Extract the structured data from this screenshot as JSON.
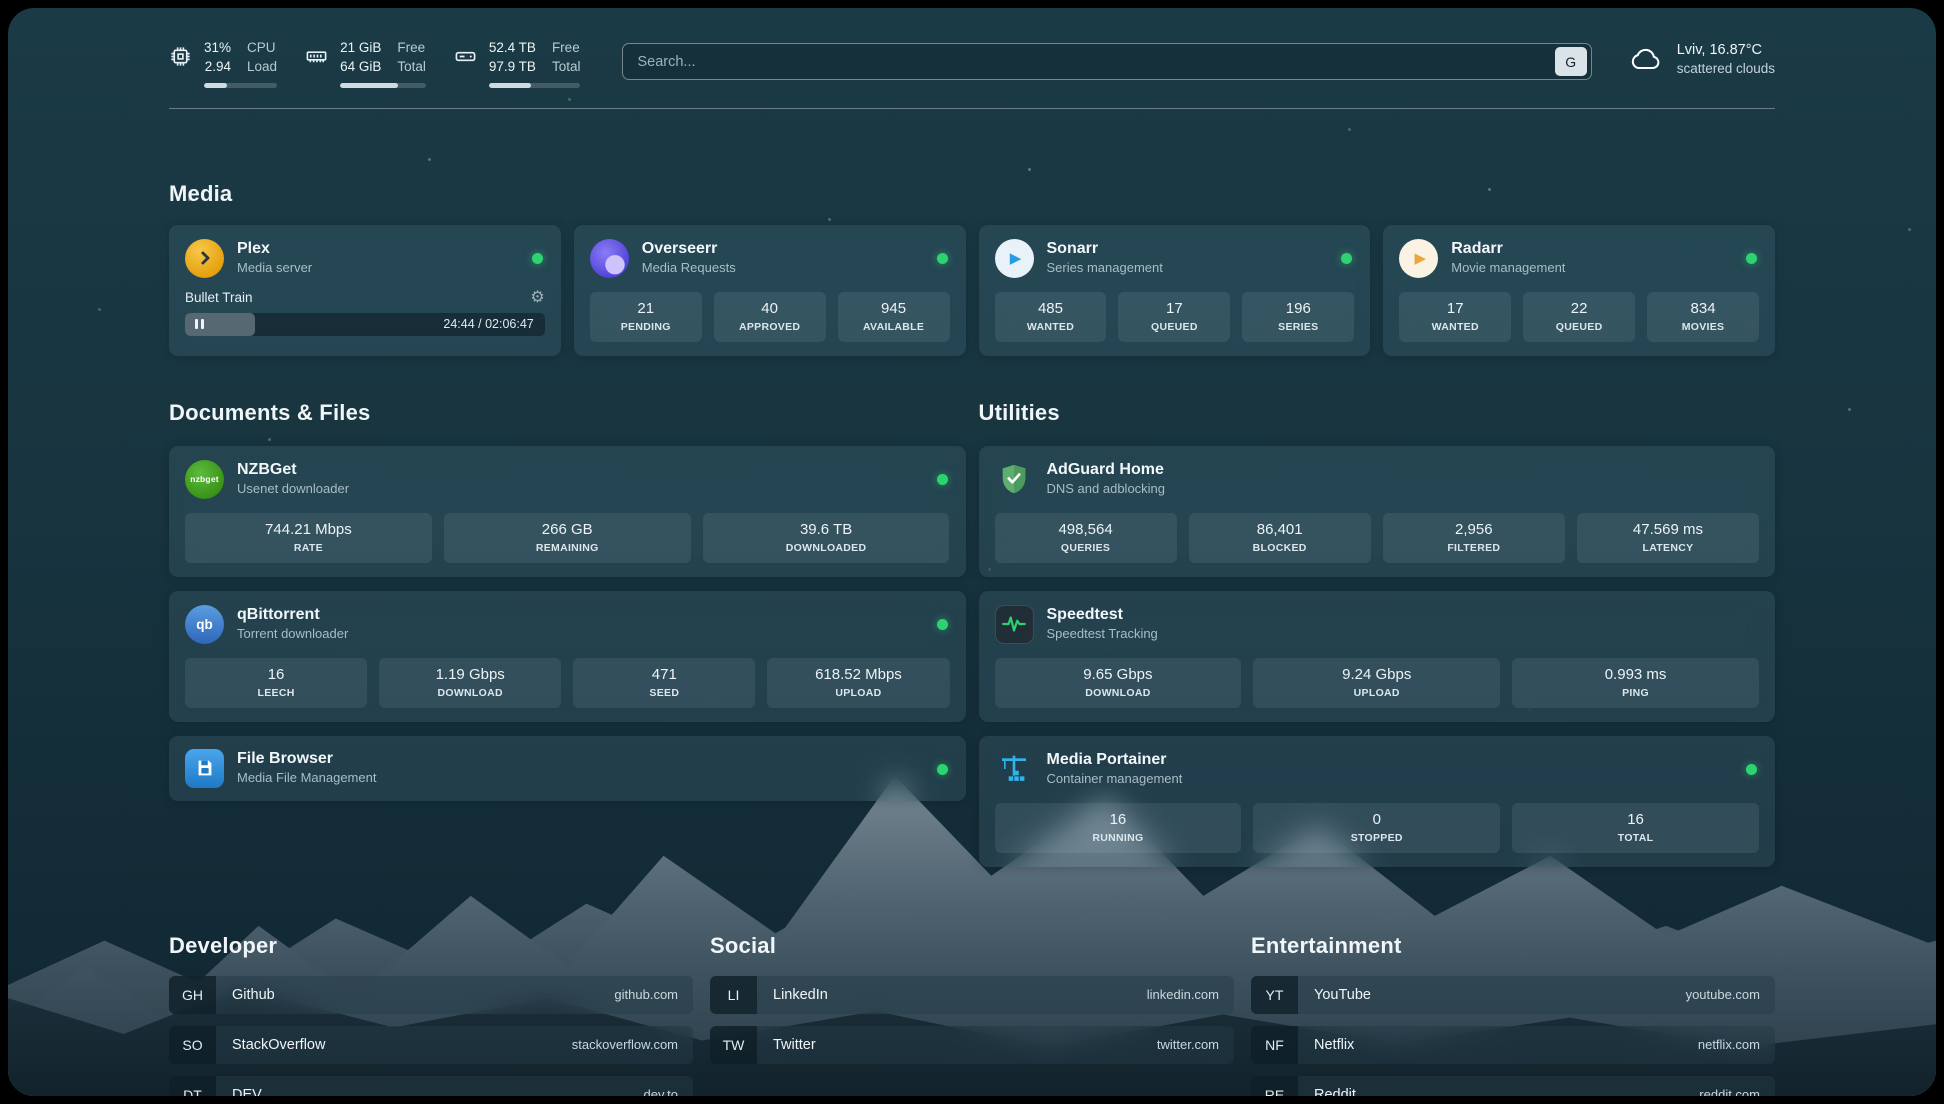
{
  "topbar": {
    "resources": [
      {
        "name": "cpu",
        "value_top": "31%",
        "value_bottom": "2.94",
        "label_top": "CPU",
        "label_bottom": "Load",
        "bar_percent": 31
      },
      {
        "name": "memory",
        "value_top": "21 GiB",
        "value_bottom": "64 GiB",
        "label_top": "Free",
        "label_bottom": "Total",
        "bar_percent": 67
      },
      {
        "name": "disk",
        "value_top": "52.4 TB",
        "value_bottom": "97.9 TB",
        "label_top": "Free",
        "label_bottom": "Total",
        "bar_percent": 46
      }
    ],
    "search": {
      "placeholder": "Search...",
      "provider_label": "G"
    },
    "weather": {
      "location": "Lviv, 16.87°C",
      "condition": "scattered clouds",
      "icon": "cloud-icon"
    }
  },
  "sections": {
    "media": "Media",
    "documents": "Documents & Files",
    "utilities": "Utilities"
  },
  "services": {
    "plex": {
      "title": "Plex",
      "subtitle": "Media server",
      "status": "online",
      "now_playing": "Bullet Train",
      "time_display": "24:44 / 02:06:47",
      "progress_percent": 19.5
    },
    "overseerr": {
      "title": "Overseerr",
      "subtitle": "Media Requests",
      "status": "online",
      "stats": [
        {
          "value": "21",
          "label": "PENDING"
        },
        {
          "value": "40",
          "label": "APPROVED"
        },
        {
          "value": "945",
          "label": "AVAILABLE"
        }
      ]
    },
    "sonarr": {
      "title": "Sonarr",
      "subtitle": "Series management",
      "status": "online",
      "stats": [
        {
          "value": "485",
          "label": "WANTED"
        },
        {
          "value": "17",
          "label": "QUEUED"
        },
        {
          "value": "196",
          "label": "SERIES"
        }
      ]
    },
    "radarr": {
      "title": "Radarr",
      "subtitle": "Movie management",
      "status": "online",
      "stats": [
        {
          "value": "17",
          "label": "WANTED"
        },
        {
          "value": "22",
          "label": "QUEUED"
        },
        {
          "value": "834",
          "label": "MOVIES"
        }
      ]
    },
    "nzbget": {
      "title": "NZBGet",
      "subtitle": "Usenet downloader",
      "status": "online",
      "icon_text": "nzbget",
      "stats": [
        {
          "value": "744.21 Mbps",
          "label": "RATE"
        },
        {
          "value": "266 GB",
          "label": "REMAINING"
        },
        {
          "value": "39.6 TB",
          "label": "DOWNLOADED"
        }
      ]
    },
    "qbittorrent": {
      "title": "qBittorrent",
      "subtitle": "Torrent downloader",
      "status": "online",
      "icon_text": "qb",
      "stats": [
        {
          "value": "16",
          "label": "LEECH"
        },
        {
          "value": "1.19 Gbps",
          "label": "DOWNLOAD"
        },
        {
          "value": "471",
          "label": "SEED"
        },
        {
          "value": "618.52 Mbps",
          "label": "UPLOAD"
        }
      ]
    },
    "filebrowser": {
      "title": "File Browser",
      "subtitle": "Media File Management",
      "status": "online"
    },
    "adguard": {
      "title": "AdGuard Home",
      "subtitle": "DNS and adblocking",
      "stats": [
        {
          "value": "498,564",
          "label": "QUERIES"
        },
        {
          "value": "86,401",
          "label": "BLOCKED"
        },
        {
          "value": "2,956",
          "label": "FILTERED"
        },
        {
          "value": "47.569 ms",
          "label": "LATENCY"
        }
      ]
    },
    "speedtest": {
      "title": "Speedtest",
      "subtitle": "Speedtest Tracking",
      "stats": [
        {
          "value": "9.65 Gbps",
          "label": "DOWNLOAD"
        },
        {
          "value": "9.24 Gbps",
          "label": "UPLOAD"
        },
        {
          "value": "0.993 ms",
          "label": "PING"
        }
      ]
    },
    "portainer": {
      "title": "Media Portainer",
      "subtitle": "Container management",
      "status": "online",
      "stats": [
        {
          "value": "16",
          "label": "RUNNING"
        },
        {
          "value": "0",
          "label": "STOPPED"
        },
        {
          "value": "16",
          "label": "TOTAL"
        }
      ]
    }
  },
  "bookmarks": [
    {
      "heading": "Developer",
      "items": [
        {
          "abbr": "GH",
          "name": "Github",
          "url": "github.com"
        },
        {
          "abbr": "SO",
          "name": "StackOverflow",
          "url": "stackoverflow.com"
        },
        {
          "abbr": "DT",
          "name": "DEV",
          "url": "dev.to"
        }
      ]
    },
    {
      "heading": "Social",
      "items": [
        {
          "abbr": "LI",
          "name": "LinkedIn",
          "url": "linkedin.com"
        },
        {
          "abbr": "TW",
          "name": "Twitter",
          "url": "twitter.com"
        }
      ]
    },
    {
      "heading": "Entertainment",
      "items": [
        {
          "abbr": "YT",
          "name": "YouTube",
          "url": "youtube.com"
        },
        {
          "abbr": "NF",
          "name": "Netflix",
          "url": "netflix.com"
        },
        {
          "abbr": "RE",
          "name": "Reddit",
          "url": "reddit.com"
        }
      ]
    }
  ],
  "colors": {
    "status_online": "#2dd36f",
    "plex": "#e5a00d",
    "overseerr": "#5a4fd0",
    "sonarr": "#259ce3",
    "radarr": "#e9a83b",
    "nzbget": "#379114",
    "qbittorrent": "#2f67ba",
    "filebrowser": "#1f7ac6",
    "adguard": "#5fae6f",
    "speedtest_accent": "#2dd36f",
    "portainer": "#2fb3e8"
  }
}
